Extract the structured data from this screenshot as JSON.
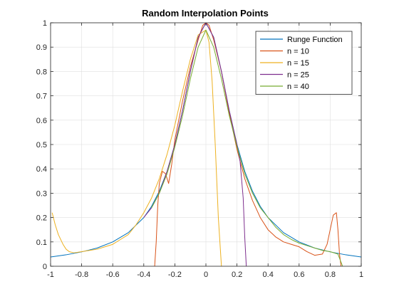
{
  "chart_data": {
    "type": "line",
    "title": "Random Interpolation Points",
    "xlabel": "",
    "ylabel": "",
    "xlim": [
      -1,
      1
    ],
    "ylim": [
      0,
      1
    ],
    "xticks": [
      "-1",
      "-0.8",
      "-0.6",
      "-0.4",
      "-0.2",
      "0",
      "0.2",
      "0.4",
      "0.6",
      "0.8",
      "1"
    ],
    "yticks": [
      "0",
      "0.1",
      "0.2",
      "0.3",
      "0.4",
      "0.5",
      "0.6",
      "0.7",
      "0.8",
      "0.9",
      "1"
    ],
    "grid": true,
    "legend_position": "top-right",
    "series": [
      {
        "name": "Runge Function",
        "color": "#0072BD",
        "x": [
          -1,
          -0.9,
          -0.8,
          -0.7,
          -0.6,
          -0.5,
          -0.4,
          -0.35,
          -0.3,
          -0.25,
          -0.2,
          -0.15,
          -0.1,
          -0.05,
          0,
          0.05,
          0.1,
          0.15,
          0.2,
          0.25,
          0.3,
          0.35,
          0.4,
          0.5,
          0.6,
          0.7,
          0.8,
          0.9,
          1
        ],
        "y": [
          0.038,
          0.047,
          0.059,
          0.075,
          0.1,
          0.138,
          0.2,
          0.246,
          0.308,
          0.39,
          0.5,
          0.64,
          0.8,
          0.941,
          1,
          0.941,
          0.8,
          0.64,
          0.5,
          0.39,
          0.308,
          0.246,
          0.2,
          0.138,
          0.1,
          0.075,
          0.059,
          0.047,
          0.038
        ]
      },
      {
        "name": "n = 10",
        "color": "#D95319",
        "x": [
          -0.33,
          -0.32,
          -0.31,
          -0.3,
          -0.28,
          -0.26,
          -0.24,
          -0.22,
          -0.2,
          -0.15,
          -0.1,
          -0.05,
          -0.02,
          0,
          0.02,
          0.05,
          0.1,
          0.15,
          0.2,
          0.25,
          0.3,
          0.35,
          0.4,
          0.45,
          0.5,
          0.55,
          0.6,
          0.65,
          0.7,
          0.75,
          0.78,
          0.8,
          0.82,
          0.84,
          0.85,
          0.86,
          0.87
        ],
        "y": [
          0,
          0.1,
          0.25,
          0.34,
          0.39,
          0.38,
          0.34,
          0.42,
          0.52,
          0.68,
          0.82,
          0.93,
          0.99,
          1,
          0.99,
          0.93,
          0.8,
          0.63,
          0.48,
          0.36,
          0.27,
          0.2,
          0.15,
          0.12,
          0.1,
          0.09,
          0.08,
          0.06,
          0.045,
          0.05,
          0.09,
          0.15,
          0.21,
          0.22,
          0.15,
          0.05,
          0
        ]
      },
      {
        "name": "n = 15",
        "color": "#EDB120",
        "x": [
          -0.99,
          -0.97,
          -0.95,
          -0.92,
          -0.9,
          -0.88,
          -0.85,
          -0.8,
          -0.75,
          -0.7,
          -0.65,
          -0.6,
          -0.55,
          -0.5,
          -0.45,
          -0.4,
          -0.35,
          -0.3,
          -0.25,
          -0.2,
          -0.15,
          -0.1,
          -0.05,
          0,
          0.02,
          0.04,
          0.06,
          0.08,
          0.1
        ],
        "y": [
          0.22,
          0.17,
          0.13,
          0.09,
          0.07,
          0.06,
          0.055,
          0.06,
          0.065,
          0.07,
          0.08,
          0.09,
          0.11,
          0.13,
          0.17,
          0.22,
          0.28,
          0.36,
          0.46,
          0.58,
          0.72,
          0.85,
          0.95,
          0.97,
          0.92,
          0.76,
          0.5,
          0.2,
          0
        ]
      },
      {
        "name": "n = 25",
        "color": "#7E2F8E",
        "x": [
          -0.4,
          -0.35,
          -0.3,
          -0.25,
          -0.2,
          -0.15,
          -0.1,
          -0.05,
          0,
          0.05,
          0.1,
          0.15,
          0.2,
          0.22,
          0.24,
          0.25,
          0.26
        ],
        "y": [
          0.2,
          0.24,
          0.3,
          0.39,
          0.5,
          0.64,
          0.8,
          0.94,
          1,
          0.94,
          0.8,
          0.64,
          0.5,
          0.43,
          0.28,
          0.12,
          0
        ]
      },
      {
        "name": "n = 40",
        "color": "#77AC30",
        "x": [
          -0.35,
          -0.3,
          -0.25,
          -0.2,
          -0.15,
          -0.1,
          -0.05,
          0,
          0.05,
          0.1,
          0.15,
          0.2,
          0.25,
          0.3,
          0.35,
          0.4,
          0.45,
          0.5,
          0.55,
          0.6,
          0.65,
          0.7,
          0.75,
          0.8,
          0.85,
          0.88
        ],
        "y": [
          0.24,
          0.3,
          0.38,
          0.49,
          0.62,
          0.77,
          0.9,
          0.97,
          0.9,
          0.77,
          0.62,
          0.49,
          0.38,
          0.3,
          0.24,
          0.2,
          0.16,
          0.13,
          0.11,
          0.095,
          0.085,
          0.075,
          0.065,
          0.06,
          0.05,
          0
        ]
      }
    ]
  }
}
